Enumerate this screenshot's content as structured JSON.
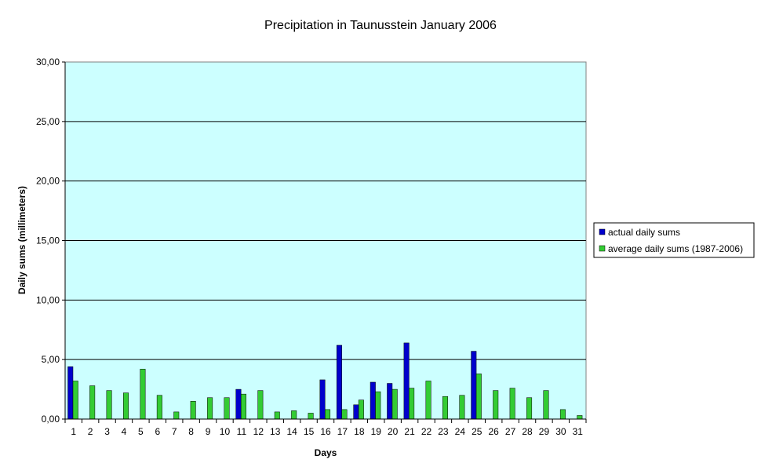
{
  "chart_data": {
    "type": "bar",
    "title": "Precipitation in Taunusstein  January  2006",
    "xlabel": "Days",
    "ylabel": "Daily sums  (millimeters)",
    "ylim": [
      0,
      30
    ],
    "y_ticks": [
      "0,00",
      "5,00",
      "10,00",
      "15,00",
      "20,00",
      "25,00",
      "30,00"
    ],
    "grid": true,
    "legend_position": "right",
    "plot_background": "#ccffff",
    "categories": [
      "1",
      "2",
      "3",
      "4",
      "5",
      "6",
      "7",
      "8",
      "9",
      "10",
      "11",
      "12",
      "13",
      "14",
      "15",
      "16",
      "17",
      "18",
      "19",
      "20",
      "21",
      "22",
      "23",
      "24",
      "25",
      "26",
      "27",
      "28",
      "29",
      "30",
      "31"
    ],
    "series": [
      {
        "name": "actual daily sums",
        "color": "#0000cc",
        "values": [
          4.4,
          0,
          0,
          0,
          0,
          0,
          0,
          0,
          0,
          0,
          2.5,
          0,
          0,
          0,
          0,
          3.3,
          6.2,
          1.2,
          3.1,
          3.0,
          6.4,
          0,
          0,
          0,
          5.7,
          0,
          0,
          0,
          0,
          0,
          0
        ]
      },
      {
        "name": "average daily sums (1987-2006)",
        "color": "#33cc33",
        "values": [
          3.2,
          2.8,
          2.4,
          2.2,
          4.2,
          2.0,
          0.6,
          1.5,
          1.8,
          1.8,
          2.1,
          2.4,
          0.6,
          0.7,
          0.5,
          0.8,
          0.8,
          1.6,
          2.3,
          2.5,
          2.6,
          3.2,
          1.9,
          2.0,
          3.8,
          2.4,
          2.6,
          1.8,
          2.4,
          0.8,
          0.3
        ]
      }
    ]
  }
}
